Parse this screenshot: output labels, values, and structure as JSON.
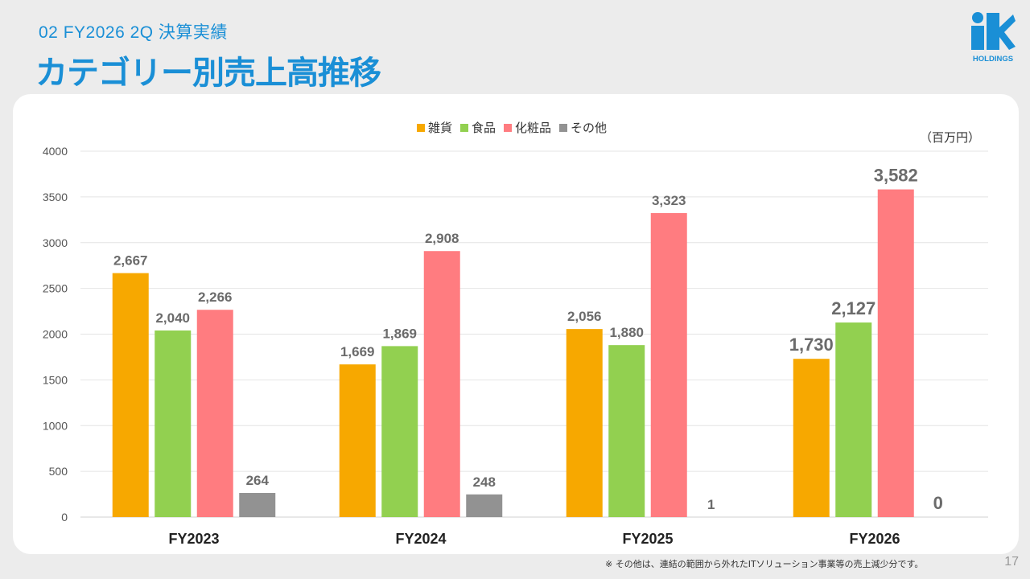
{
  "header": {
    "subtitle": "02  FY2026 2Q  決算実績",
    "title": "カテゴリー別売上高推移"
  },
  "logo": {
    "text": "HOLDINGS",
    "brand": "ik",
    "color": "#1a8fd6"
  },
  "footnote": "※ その他は、連結の範囲から外れたITソリューション事業等の売上減少分です。",
  "page_number": "17",
  "chart_data": {
    "type": "bar",
    "categories": [
      "FY2023",
      "FY2024",
      "FY2025",
      "FY2026"
    ],
    "series": [
      {
        "name": "雑貨",
        "color": "#f7a800",
        "values": [
          2667,
          1669,
          2056,
          1730
        ],
        "labels": [
          "2,667",
          "1,669",
          "2,056",
          "1,730"
        ]
      },
      {
        "name": "食品",
        "color": "#92d050",
        "values": [
          2040,
          1869,
          1880,
          2127
        ],
        "labels": [
          "2,040",
          "1,869",
          "1,880",
          "2,127"
        ]
      },
      {
        "name": "化粧品",
        "color": "#ff7c80",
        "values": [
          2266,
          2908,
          3323,
          3582
        ],
        "labels": [
          "2,266",
          "2,908",
          "3,323",
          "3,582"
        ]
      },
      {
        "name": "その他",
        "color": "#929292",
        "values": [
          264,
          248,
          1,
          0
        ],
        "labels": [
          "264",
          "248",
          "1",
          "0"
        ]
      }
    ],
    "unit": "（百万円）",
    "ylim": [
      0,
      4000
    ],
    "yticks": [
      "0",
      "500",
      "1000",
      "1500",
      "2000",
      "2500",
      "3000",
      "3500",
      "4000"
    ],
    "grid": true,
    "legend": "top-center",
    "highlight_category": "FY2026"
  }
}
